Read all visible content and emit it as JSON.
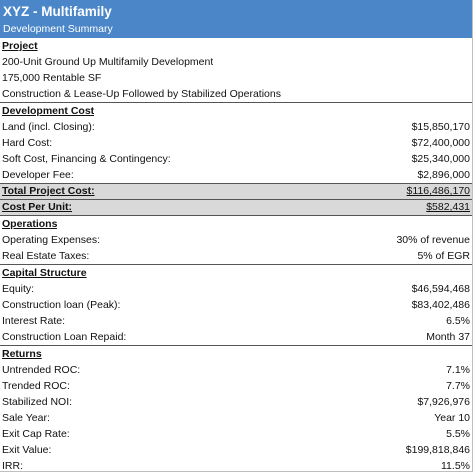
{
  "header": {
    "title": "XYZ - Multifamily",
    "subtitle": "Development Summary"
  },
  "project": {
    "heading": "Project",
    "lines": [
      "200-Unit Ground Up Multifamily Development",
      "175,000 Rentable SF",
      "Construction & Lease-Up Followed by Stabilized Operations"
    ]
  },
  "development_cost": {
    "heading": "Development Cost",
    "rows": [
      {
        "label": "Land (incl. Closing):",
        "value": "$15,850,170"
      },
      {
        "label": "Hard Cost:",
        "value": "$72,400,000"
      },
      {
        "label": "Soft Cost, Financing & Contingency:",
        "value": "$25,340,000"
      },
      {
        "label": "Developer Fee:",
        "value": "$2,896,000"
      }
    ],
    "total": {
      "label": "Total Project Cost:",
      "value": "$116,486,170"
    },
    "per_unit": {
      "label": "Cost Per Unit:",
      "value": "$582,431"
    }
  },
  "operations": {
    "heading": "Operations",
    "rows": [
      {
        "label": "Operating Expenses:",
        "value": "30% of revenue"
      },
      {
        "label": "Real Estate Taxes:",
        "value": "5% of EGR"
      }
    ]
  },
  "capital_structure": {
    "heading": "Capital Structure",
    "rows": [
      {
        "label": "Equity:",
        "value": "$46,594,468"
      },
      {
        "label": "Construction loan (Peak):",
        "value": "$83,402,486"
      },
      {
        "label": "Interest Rate:",
        "value": "6.5%"
      },
      {
        "label": "Construction Loan Repaid:",
        "value": "Month 37"
      }
    ]
  },
  "returns": {
    "heading": "Returns",
    "rows": [
      {
        "label": "Untrended ROC:",
        "value": "7.1%"
      },
      {
        "label": "Trended ROC:",
        "value": "7.7%"
      },
      {
        "label": "Stabilized NOI:",
        "value": "$7,926,976"
      },
      {
        "label": "Sale Year:",
        "value": "Year 10"
      },
      {
        "label": "Exit Cap Rate:",
        "value": "5.5%"
      },
      {
        "label": "Exit Value:",
        "value": "$199,818,846"
      },
      {
        "label": "IRR:",
        "value": "11.5%"
      }
    ]
  },
  "colors": {
    "header_bg": "#4a86c8",
    "total_bg": "#d9d9d9"
  }
}
